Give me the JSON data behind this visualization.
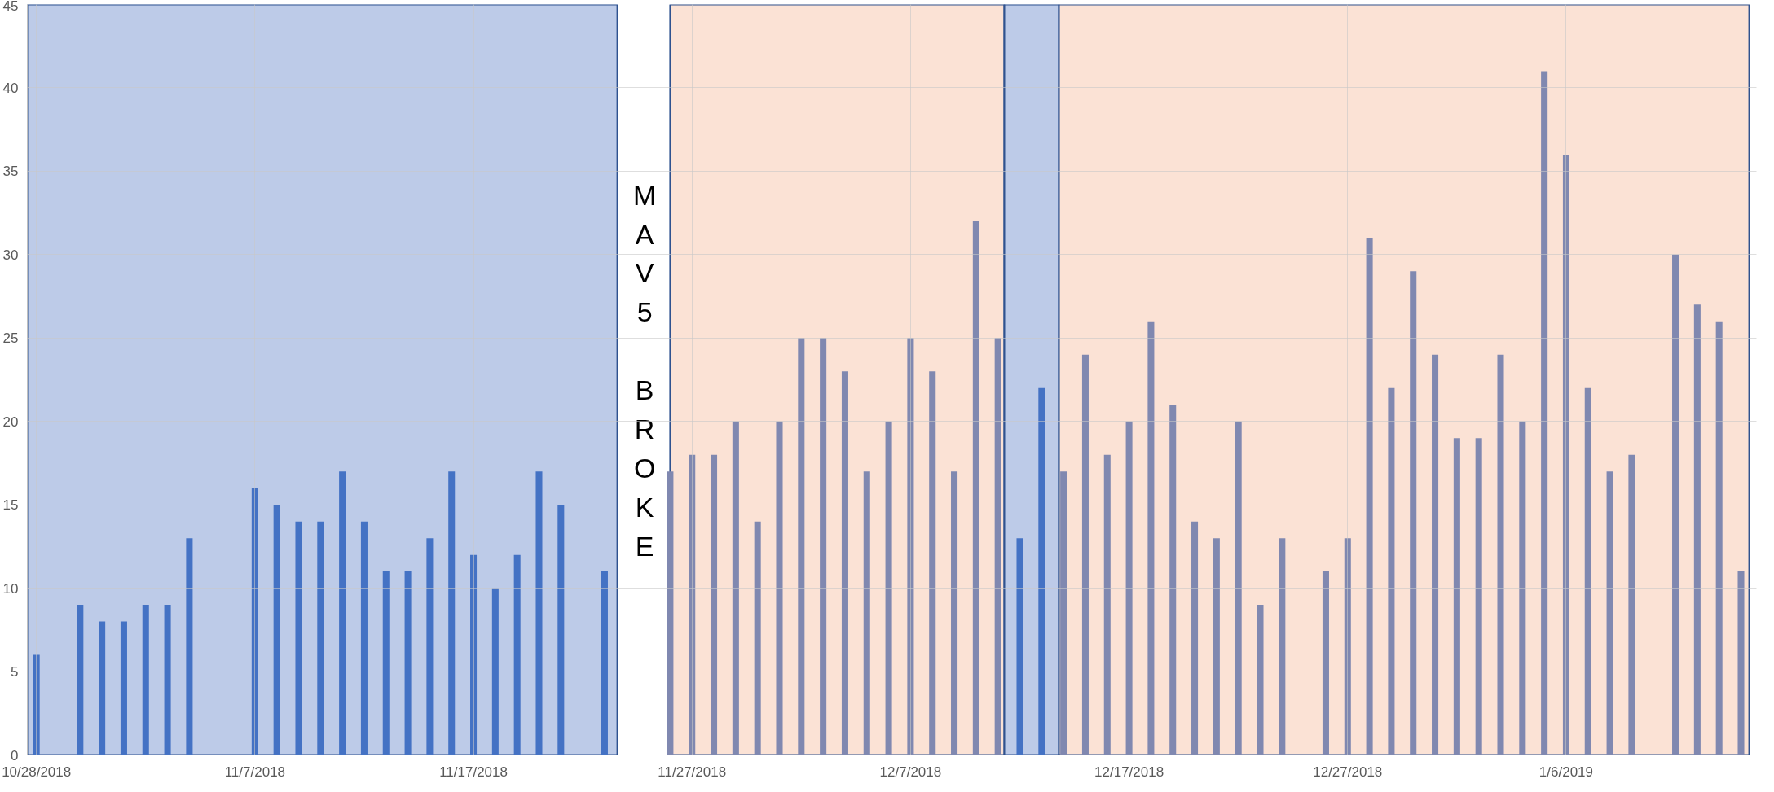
{
  "chart_data": {
    "type": "bar",
    "x": [
      "2018-10-28",
      "2018-10-30",
      "2018-10-31",
      "2018-11-01",
      "2018-11-02",
      "2018-11-03",
      "2018-11-04",
      "2018-11-07",
      "2018-11-08",
      "2018-11-09",
      "2018-11-10",
      "2018-11-11",
      "2018-11-12",
      "2018-11-13",
      "2018-11-14",
      "2018-11-15",
      "2018-11-16",
      "2018-11-17",
      "2018-11-18",
      "2018-11-19",
      "2018-11-20",
      "2018-11-21",
      "2018-11-23",
      "2018-11-26",
      "2018-11-27",
      "2018-11-28",
      "2018-11-29",
      "2018-11-30",
      "2018-12-01",
      "2018-12-02",
      "2018-12-03",
      "2018-12-04",
      "2018-12-05",
      "2018-12-06",
      "2018-12-07",
      "2018-12-08",
      "2018-12-09",
      "2018-12-10",
      "2018-12-11",
      "2018-12-12",
      "2018-12-13",
      "2018-12-14",
      "2018-12-15",
      "2018-12-16",
      "2018-12-17",
      "2018-12-18",
      "2018-12-19",
      "2018-12-20",
      "2018-12-21",
      "2018-12-22",
      "2018-12-23",
      "2018-12-24",
      "2018-12-26",
      "2018-12-27",
      "2018-12-28",
      "2018-12-29",
      "2018-12-30",
      "2018-12-31",
      "2019-01-01",
      "2019-01-02",
      "2019-01-03",
      "2019-01-04",
      "2019-01-05",
      "2019-01-06",
      "2019-01-07",
      "2019-01-08",
      "2019-01-09",
      "2019-01-11",
      "2019-01-12",
      "2019-01-13",
      "2019-01-14"
    ],
    "values": [
      6,
      9,
      8,
      8,
      9,
      9,
      13,
      16,
      15,
      14,
      14,
      17,
      14,
      11,
      11,
      13,
      17,
      12,
      10,
      12,
      17,
      15,
      11,
      17,
      18,
      18,
      20,
      14,
      20,
      25,
      25,
      23,
      17,
      20,
      25,
      23,
      17,
      32,
      25,
      13,
      22,
      17,
      24,
      18,
      20,
      26,
      21,
      14,
      13,
      20,
      9,
      13,
      11,
      13,
      31,
      22,
      29,
      24,
      19,
      19,
      24,
      20,
      41,
      36,
      22,
      17,
      18,
      30,
      27,
      26,
      11
    ],
    "colors": [
      "#4472c4",
      "#4472c4",
      "#4472c4",
      "#4472c4",
      "#4472c4",
      "#4472c4",
      "#4472c4",
      "#4472c4",
      "#4472c4",
      "#4472c4",
      "#4472c4",
      "#4472c4",
      "#4472c4",
      "#4472c4",
      "#4472c4",
      "#4472c4",
      "#4472c4",
      "#4472c4",
      "#4472c4",
      "#4472c4",
      "#4472c4",
      "#4472c4",
      "#4472c4",
      "#8088b0",
      "#8088b0",
      "#8088b0",
      "#8088b0",
      "#8088b0",
      "#8088b0",
      "#8088b0",
      "#8088b0",
      "#8088b0",
      "#8088b0",
      "#8088b0",
      "#8088b0",
      "#8088b0",
      "#8088b0",
      "#8088b0",
      "#8088b0",
      "#4472c4",
      "#4472c4",
      "#8088b0",
      "#8088b0",
      "#8088b0",
      "#8088b0",
      "#8088b0",
      "#8088b0",
      "#8088b0",
      "#8088b0",
      "#8088b0",
      "#8088b0",
      "#8088b0",
      "#8088b0",
      "#8088b0",
      "#8088b0",
      "#8088b0",
      "#8088b0",
      "#8088b0",
      "#8088b0",
      "#8088b0",
      "#8088b0",
      "#8088b0",
      "#8088b0",
      "#8088b0",
      "#8088b0",
      "#8088b0",
      "#8088b0",
      "#8088b0",
      "#8088b0",
      "#8088b0",
      "#8088b0"
    ],
    "xlim": [
      "2018-10-27T14:00",
      "2019-01-14T17:00"
    ],
    "xticks": [
      {
        "value": "2018-10-28",
        "label": "10/28/2018"
      },
      {
        "value": "2018-11-07",
        "label": "11/7/2018"
      },
      {
        "value": "2018-11-17",
        "label": "11/17/2018"
      },
      {
        "value": "2018-11-27",
        "label": "11/27/2018"
      },
      {
        "value": "2018-12-07",
        "label": "12/7/2018"
      },
      {
        "value": "2018-12-17",
        "label": "12/17/2018"
      },
      {
        "value": "2018-12-27",
        "label": "12/27/2018"
      },
      {
        "value": "2019-01-06",
        "label": "1/6/2019"
      }
    ],
    "ylim": [
      0,
      45
    ],
    "yticks": [
      0,
      5,
      10,
      15,
      20,
      25,
      30,
      35,
      40,
      45
    ],
    "grid": true,
    "bands": [
      {
        "axis": "x",
        "from": "2018-10-27T14:00",
        "to": "2018-11-23T14:00",
        "label": null,
        "color": "#bdcbe8"
      },
      {
        "axis": "x",
        "from": "2018-11-26T00:00",
        "to": "2018-12-11T07:00",
        "label": null,
        "color": "#fbe2d5"
      },
      {
        "axis": "x",
        "from": "2018-12-11T07:00",
        "to": "2018-12-13T19:00",
        "label": null,
        "color": "#bdcbe8"
      },
      {
        "axis": "x",
        "from": "2018-12-13T19:00",
        "to": "2019-01-14T09:00",
        "label": null,
        "color": "#fbe2d5"
      }
    ],
    "annotations": [
      "MAV5 BROKE"
    ]
  }
}
